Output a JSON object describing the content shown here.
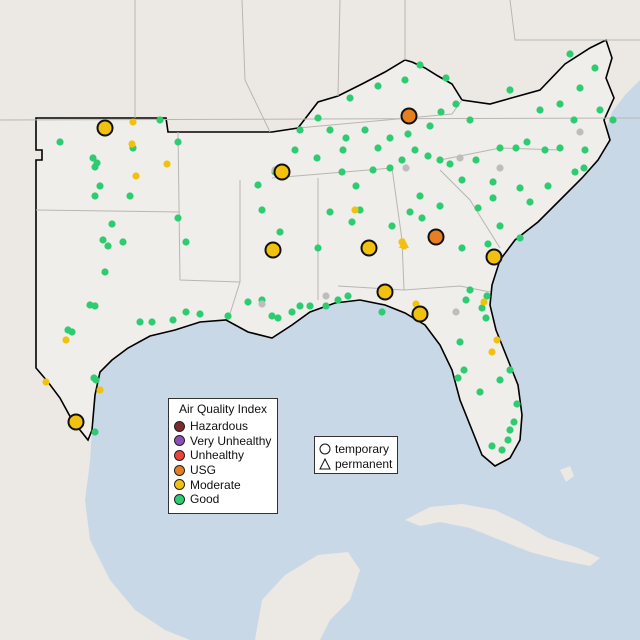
{
  "legend": {
    "title": "Air Quality Index",
    "categories": [
      {
        "label": "Hazardous",
        "color": "#7e2a2a"
      },
      {
        "label": "Very Unhealthy",
        "color": "#8e4fb5"
      },
      {
        "label": "Unhealthy",
        "color": "#e8443a"
      },
      {
        "label": "USG",
        "color": "#e67e22"
      },
      {
        "label": "Moderate",
        "color": "#f2c10f"
      },
      {
        "label": "Good",
        "color": "#2ecc71"
      }
    ]
  },
  "monitor_types": {
    "temporary": {
      "label": "temporary",
      "shape": "circle"
    },
    "permanent": {
      "label": "permanent",
      "shape": "triangle"
    }
  },
  "colors": {
    "water": "#c9d8e6",
    "land": "#ece9e4",
    "region_land": "#f0eeea",
    "region_outline": "#000000",
    "state_border": "#b9b6b2",
    "no_data": "#bdbdbd"
  }
}
